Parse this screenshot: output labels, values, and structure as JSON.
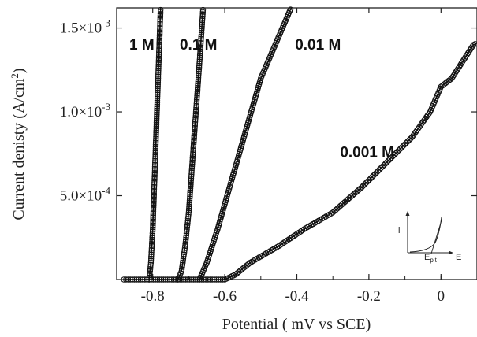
{
  "chart_data": {
    "type": "scatter",
    "title": "",
    "xlabel": "Potential ( mV vs SCE)",
    "ylabel_prefix": "Current denisty (A/cm",
    "ylabel_sup": "2",
    "ylabel_suffix": ")",
    "xlim": [
      -0.9,
      0.1
    ],
    "ylim": [
      0,
      0.00162
    ],
    "x_ticks": [
      -0.8,
      -0.6,
      -0.4,
      -0.2,
      0
    ],
    "x_tick_labels": [
      "-0.8",
      "-0.6",
      "-0.4",
      "-0.2",
      "0"
    ],
    "y_ticks": [
      {
        "value": 0.0005,
        "mant": "5.0×10",
        "exp": "-4"
      },
      {
        "value": 0.001,
        "mant": "1.0×10",
        "exp": "-3"
      },
      {
        "value": 0.0015,
        "mant": "1.5×10",
        "exp": "-3"
      }
    ],
    "grid": false,
    "marker": "open-circle",
    "series": [
      {
        "name": "1 M",
        "points": [
          [
            -0.88,
            0
          ],
          [
            -0.81,
            0
          ],
          [
            -0.805,
            0.0001
          ],
          [
            -0.8,
            0.0003
          ],
          [
            -0.795,
            0.0006
          ],
          [
            -0.79,
            0.0009
          ],
          [
            -0.785,
            0.0012
          ],
          [
            -0.78,
            0.0015
          ],
          [
            -0.778,
            0.00162
          ]
        ]
      },
      {
        "name": "0.1 M",
        "points": [
          [
            -0.81,
            0
          ],
          [
            -0.73,
            0
          ],
          [
            -0.72,
            5e-05
          ],
          [
            -0.71,
            0.0002
          ],
          [
            -0.7,
            0.0004
          ],
          [
            -0.69,
            0.0007
          ],
          [
            -0.68,
            0.001
          ],
          [
            -0.67,
            0.0013
          ],
          [
            -0.66,
            0.00162
          ]
        ]
      },
      {
        "name": "0.01 M",
        "points": [
          [
            -0.73,
            0
          ],
          [
            -0.67,
            0
          ],
          [
            -0.65,
            0.0001
          ],
          [
            -0.62,
            0.0003
          ],
          [
            -0.58,
            0.0006
          ],
          [
            -0.54,
            0.0009
          ],
          [
            -0.5,
            0.0012
          ],
          [
            -0.46,
            0.0014
          ],
          [
            -0.42,
            0.0016
          ],
          [
            -0.415,
            0.00162
          ]
        ]
      },
      {
        "name": "0.001 M",
        "points": [
          [
            -0.67,
            0
          ],
          [
            -0.6,
            0
          ],
          [
            -0.57,
            3e-05
          ],
          [
            -0.53,
            0.0001
          ],
          [
            -0.45,
            0.0002
          ],
          [
            -0.38,
            0.0003
          ],
          [
            -0.3,
            0.0004
          ],
          [
            -0.22,
            0.00055
          ],
          [
            -0.15,
            0.0007
          ],
          [
            -0.08,
            0.00085
          ],
          [
            -0.03,
            0.001
          ],
          [
            0.0,
            0.00115
          ],
          [
            0.03,
            0.0012
          ],
          [
            0.06,
            0.0013
          ],
          [
            0.09,
            0.0014
          ],
          [
            0.1,
            0.00141
          ]
        ]
      }
    ],
    "annotations": [
      {
        "text": "1 M",
        "x": -0.865,
        "y": 0.00137
      },
      {
        "text": "0.1 M",
        "x": -0.725,
        "y": 0.00137
      },
      {
        "text": "0.01 M",
        "x": -0.405,
        "y": 0.00137
      },
      {
        "text": "0.001 M",
        "x": -0.28,
        "y": 0.00073
      }
    ],
    "inset": {
      "y_label": "i",
      "x_label": "E",
      "curve_label": "E",
      "curve_label_sub": "pit"
    }
  }
}
